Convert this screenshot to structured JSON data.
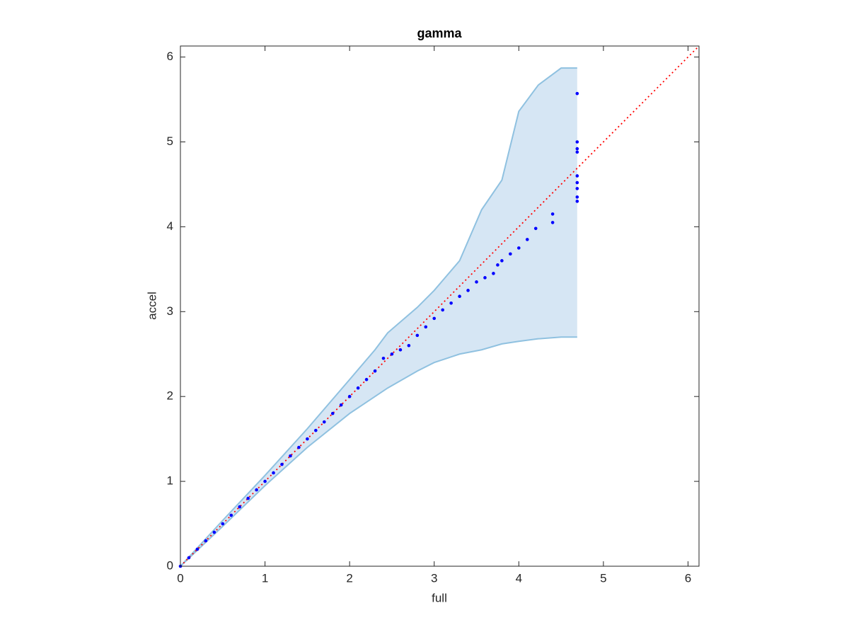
{
  "chart_data": {
    "type": "qq",
    "title": "gamma",
    "xlabel": "full",
    "ylabel": "accel",
    "xlim": [
      0,
      6.13
    ],
    "ylim": [
      0,
      6.13
    ],
    "xticks": [
      0,
      1,
      2,
      3,
      4,
      5,
      6
    ],
    "yticks": [
      0,
      1,
      2,
      3,
      4,
      5,
      6
    ],
    "band": {
      "color": "#d6e6f4",
      "edge_color": "#8fc1e0",
      "x": [
        0,
        0.5,
        1,
        1.5,
        2,
        2.3,
        2.45,
        2.8,
        3,
        3.3,
        3.56,
        3.8,
        4,
        4.23,
        4.5,
        4.69
      ],
      "upper": [
        0,
        0.54,
        1.07,
        1.62,
        2.2,
        2.55,
        2.75,
        3.05,
        3.25,
        3.6,
        4.2,
        4.55,
        5.36,
        5.67,
        5.87,
        5.87
      ],
      "lower": [
        0,
        0.47,
        0.95,
        1.4,
        1.8,
        2.0,
        2.1,
        2.3,
        2.4,
        2.5,
        2.55,
        2.62,
        2.65,
        2.68,
        2.7,
        2.7
      ]
    },
    "reference_line": {
      "color": "#ff0000",
      "x": [
        0,
        6.13
      ],
      "y": [
        0,
        6.13
      ]
    },
    "points": {
      "color": "#0000ff",
      "x": [
        0,
        0.1,
        0.2,
        0.3,
        0.4,
        0.5,
        0.6,
        0.7,
        0.8,
        0.9,
        1.0,
        1.1,
        1.2,
        1.3,
        1.4,
        1.5,
        1.6,
        1.7,
        1.8,
        1.9,
        2.0,
        2.1,
        2.2,
        2.3,
        2.4,
        2.5,
        2.6,
        2.7,
        2.8,
        2.9,
        3.0,
        3.1,
        3.2,
        3.3,
        3.4,
        3.5,
        3.6,
        3.7,
        3.75,
        3.8,
        3.9,
        4.0,
        4.1,
        4.2,
        4.4,
        4.4,
        4.69,
        4.69,
        4.69,
        4.69,
        4.69,
        4.69,
        4.69,
        4.69,
        4.69
      ],
      "y": [
        0,
        0.1,
        0.2,
        0.3,
        0.4,
        0.5,
        0.6,
        0.7,
        0.8,
        0.9,
        1.0,
        1.1,
        1.2,
        1.3,
        1.4,
        1.5,
        1.6,
        1.7,
        1.8,
        1.9,
        2.0,
        2.1,
        2.2,
        2.3,
        2.45,
        2.5,
        2.55,
        2.6,
        2.72,
        2.82,
        2.92,
        3.02,
        3.1,
        3.18,
        3.25,
        3.35,
        3.4,
        3.45,
        3.55,
        3.6,
        3.68,
        3.75,
        3.85,
        3.98,
        4.05,
        4.15,
        4.3,
        4.35,
        4.45,
        4.52,
        4.6,
        4.88,
        4.92,
        5.0,
        5.57
      ]
    }
  }
}
